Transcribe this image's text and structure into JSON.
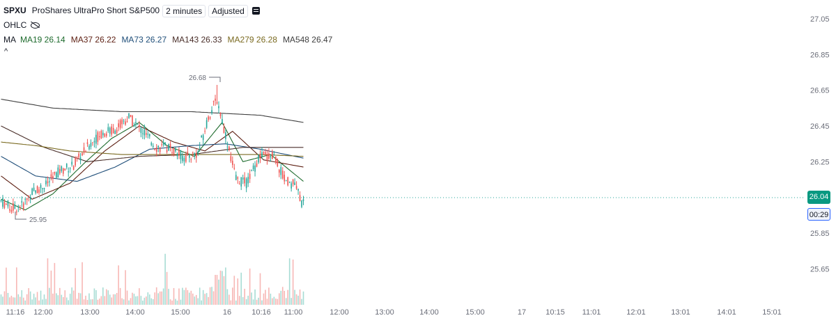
{
  "header": {
    "symbol": "SPXU",
    "description": "ProShares UltraPro Short S&P500",
    "interval": "2 minutes",
    "adjustment": "Adjusted",
    "ohlc_label": "OHLC",
    "ma_label": "MA",
    "collapse_glyph": "^"
  },
  "moving_averages": [
    {
      "label": "MA19",
      "value": "26.14",
      "color": "#1e6b2d"
    },
    {
      "label": "MA37",
      "value": "26.22",
      "color": "#5d1f12"
    },
    {
      "label": "MA73",
      "value": "26.27",
      "color": "#1f4e79"
    },
    {
      "label": "MA143",
      "value": "26.33",
      "color": "#4a2f2a"
    },
    {
      "label": "MA279",
      "value": "26.28",
      "color": "#7a6a20"
    },
    {
      "label": "MA548",
      "value": "26.47",
      "color": "#3f3f3f"
    }
  ],
  "annotations": {
    "high": "26.68",
    "low": "25.95"
  },
  "last_price": "26.04",
  "countdown": "00:29",
  "colors": {
    "up": "#26a69a",
    "down": "#ef5350",
    "up_vol": "#a7dcd4",
    "down_vol": "#f7b7b5",
    "axis_text": "#6a6d78"
  },
  "chart_data": {
    "type": "candlestick",
    "symbol": "SPXU",
    "interval": "2 minutes",
    "y_ticks": [
      "27.05",
      "26.85",
      "26.65",
      "26.45",
      "26.25",
      "25.85",
      "25.65"
    ],
    "ylim": [
      25.57,
      27.07
    ],
    "x_ticks": [
      "11:16",
      "12:00",
      "13:00",
      "14:00",
      "15:00",
      "16",
      "10:16",
      "11:00",
      "12:00",
      "13:00",
      "14:00",
      "15:00",
      "17",
      "10:15",
      "11:01",
      "12:01",
      "13:01",
      "14:01",
      "15:01"
    ],
    "high": 26.68,
    "low": 25.95,
    "last": 26.04,
    "price_path": [
      {
        "i": 0,
        "v": 26.03
      },
      {
        "i": 6,
        "v": 25.99
      },
      {
        "i": 12,
        "v": 26.0
      },
      {
        "i": 18,
        "v": 26.08
      },
      {
        "i": 26,
        "v": 26.12
      },
      {
        "i": 34,
        "v": 26.2
      },
      {
        "i": 42,
        "v": 26.23
      },
      {
        "i": 50,
        "v": 26.33
      },
      {
        "i": 58,
        "v": 26.41
      },
      {
        "i": 66,
        "v": 26.43
      },
      {
        "i": 74,
        "v": 26.5
      },
      {
        "i": 82,
        "v": 26.42
      },
      {
        "i": 90,
        "v": 26.33
      },
      {
        "i": 98,
        "v": 26.33
      },
      {
        "i": 106,
        "v": 26.27
      },
      {
        "i": 114,
        "v": 26.3
      },
      {
        "i": 120,
        "v": 26.5
      },
      {
        "i": 125,
        "v": 26.6
      },
      {
        "i": 130,
        "v": 26.4
      },
      {
        "i": 136,
        "v": 26.15
      },
      {
        "i": 142,
        "v": 26.13
      },
      {
        "i": 150,
        "v": 26.28
      },
      {
        "i": 158,
        "v": 26.28
      },
      {
        "i": 164,
        "v": 26.15
      },
      {
        "i": 170,
        "v": 26.12
      },
      {
        "i": 175,
        "v": 26.0
      }
    ],
    "moving_average_paths": {
      "MA19": [
        {
          "i": 0,
          "v": 26.04
        },
        {
          "i": 14,
          "v": 25.98
        },
        {
          "i": 30,
          "v": 26.07
        },
        {
          "i": 48,
          "v": 26.24
        },
        {
          "i": 64,
          "v": 26.38
        },
        {
          "i": 80,
          "v": 26.47
        },
        {
          "i": 96,
          "v": 26.34
        },
        {
          "i": 112,
          "v": 26.28
        },
        {
          "i": 128,
          "v": 26.47
        },
        {
          "i": 140,
          "v": 26.25
        },
        {
          "i": 156,
          "v": 26.29
        },
        {
          "i": 175,
          "v": 26.14
        }
      ],
      "MA37": [
        {
          "i": 0,
          "v": 26.17
        },
        {
          "i": 18,
          "v": 26.04
        },
        {
          "i": 40,
          "v": 26.13
        },
        {
          "i": 60,
          "v": 26.31
        },
        {
          "i": 80,
          "v": 26.45
        },
        {
          "i": 100,
          "v": 26.36
        },
        {
          "i": 118,
          "v": 26.31
        },
        {
          "i": 134,
          "v": 26.42
        },
        {
          "i": 152,
          "v": 26.26
        },
        {
          "i": 175,
          "v": 26.22
        }
      ],
      "MA73": [
        {
          "i": 0,
          "v": 26.28
        },
        {
          "i": 20,
          "v": 26.17
        },
        {
          "i": 44,
          "v": 26.14
        },
        {
          "i": 66,
          "v": 26.22
        },
        {
          "i": 86,
          "v": 26.32
        },
        {
          "i": 110,
          "v": 26.34
        },
        {
          "i": 130,
          "v": 26.35
        },
        {
          "i": 150,
          "v": 26.32
        },
        {
          "i": 175,
          "v": 26.27
        }
      ],
      "MA143": [
        {
          "i": 0,
          "v": 26.45
        },
        {
          "i": 25,
          "v": 26.33
        },
        {
          "i": 50,
          "v": 26.25
        },
        {
          "i": 80,
          "v": 26.28
        },
        {
          "i": 110,
          "v": 26.29
        },
        {
          "i": 140,
          "v": 26.33
        },
        {
          "i": 175,
          "v": 26.33
        }
      ],
      "MA279": [
        {
          "i": 0,
          "v": 26.36
        },
        {
          "i": 20,
          "v": 26.34
        },
        {
          "i": 40,
          "v": 26.31
        },
        {
          "i": 70,
          "v": 26.29
        },
        {
          "i": 110,
          "v": 26.29
        },
        {
          "i": 150,
          "v": 26.29
        },
        {
          "i": 175,
          "v": 26.28
        }
      ],
      "MA548": [
        {
          "i": 0,
          "v": 26.6
        },
        {
          "i": 30,
          "v": 26.55
        },
        {
          "i": 70,
          "v": 26.53
        },
        {
          "i": 110,
          "v": 26.53
        },
        {
          "i": 150,
          "v": 26.51
        },
        {
          "i": 175,
          "v": 26.47
        }
      ]
    }
  }
}
